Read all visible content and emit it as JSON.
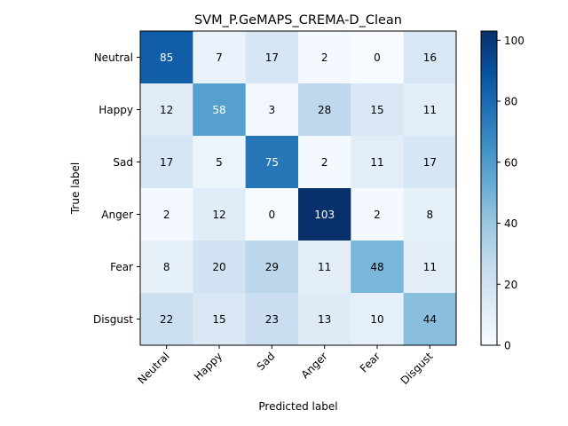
{
  "chart_data": {
    "type": "heatmap",
    "title": "SVM_P.GeMAPS_CREMA-D_Clean",
    "xlabel": "Predicted label",
    "ylabel": "True label",
    "x_categories": [
      "Neutral",
      "Happy",
      "Sad",
      "Anger",
      "Fear",
      "Disgust"
    ],
    "y_categories": [
      "Neutral",
      "Happy",
      "Sad",
      "Anger",
      "Fear",
      "Disgust"
    ],
    "values": [
      [
        85,
        7,
        17,
        2,
        0,
        16
      ],
      [
        12,
        58,
        3,
        28,
        15,
        11
      ],
      [
        17,
        5,
        75,
        2,
        11,
        17
      ],
      [
        2,
        12,
        0,
        103,
        2,
        8
      ],
      [
        8,
        20,
        29,
        11,
        48,
        11
      ],
      [
        22,
        15,
        23,
        13,
        10,
        44
      ]
    ],
    "colormap": "Blues",
    "color_range": [
      0,
      103
    ],
    "colorbar_ticks": [
      0,
      20,
      40,
      60,
      80,
      100
    ],
    "grid": false
  }
}
